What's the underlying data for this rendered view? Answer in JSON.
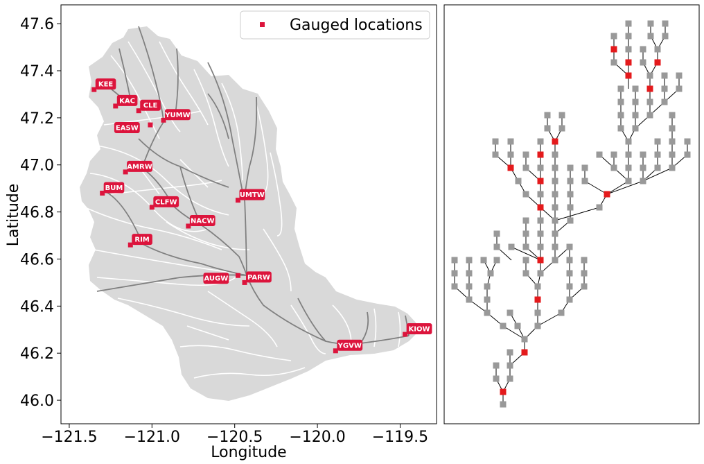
{
  "map": {
    "xlabel": "Longitude",
    "ylabel": "Latitude",
    "xlim": [
      -121.55,
      -119.28
    ],
    "ylim": [
      45.9,
      47.68
    ],
    "xticks": [
      -121.5,
      -121.0,
      -120.5,
      -120.0,
      -119.5
    ],
    "xtick_labels": [
      "−121.5",
      "−121.0",
      "−120.5",
      "−120.0",
      "−119.5"
    ],
    "yticks": [
      46.0,
      46.2,
      46.4,
      46.6,
      46.8,
      47.0,
      47.2,
      47.4,
      47.6
    ],
    "ytick_labels": [
      "46.0",
      "46.2",
      "46.4",
      "46.6",
      "46.8",
      "47.0",
      "47.2",
      "47.4",
      "47.6"
    ],
    "legend": {
      "label": "Gauged locations",
      "position": "upper right"
    },
    "colors": {
      "basin": "#d9d9d9",
      "gauge": "#dc143c",
      "river_major": "#808080",
      "river_minor": "#ffffff"
    },
    "gauges": [
      {
        "name": "KEE",
        "lon": -121.35,
        "lat": 47.32
      },
      {
        "name": "KAC",
        "lon": -121.22,
        "lat": 47.25
      },
      {
        "name": "CLE",
        "lon": -121.08,
        "lat": 47.23
      },
      {
        "name": "YUMW",
        "lon": -120.93,
        "lat": 47.19
      },
      {
        "name": "EASW",
        "lon": -121.01,
        "lat": 47.17
      },
      {
        "name": "AMRW",
        "lon": -121.16,
        "lat": 46.97
      },
      {
        "name": "BUM",
        "lon": -121.3,
        "lat": 46.88
      },
      {
        "name": "CLFW",
        "lon": -121.0,
        "lat": 46.82
      },
      {
        "name": "UMTW",
        "lon": -120.48,
        "lat": 46.85
      },
      {
        "name": "NACW",
        "lon": -120.78,
        "lat": 46.74
      },
      {
        "name": "RIM",
        "lon": -121.13,
        "lat": 46.66
      },
      {
        "name": "PARW",
        "lon": -120.44,
        "lat": 46.5
      },
      {
        "name": "AUGW",
        "lon": -120.48,
        "lat": 46.53
      },
      {
        "name": "KIOW",
        "lon": -119.47,
        "lat": 46.28
      },
      {
        "name": "YGVW",
        "lon": -119.89,
        "lat": 46.21
      }
    ]
  },
  "network": {
    "colors": {
      "ungauged": "#999999",
      "gauged": "#e41a1c",
      "edge": "#000000"
    }
  }
}
